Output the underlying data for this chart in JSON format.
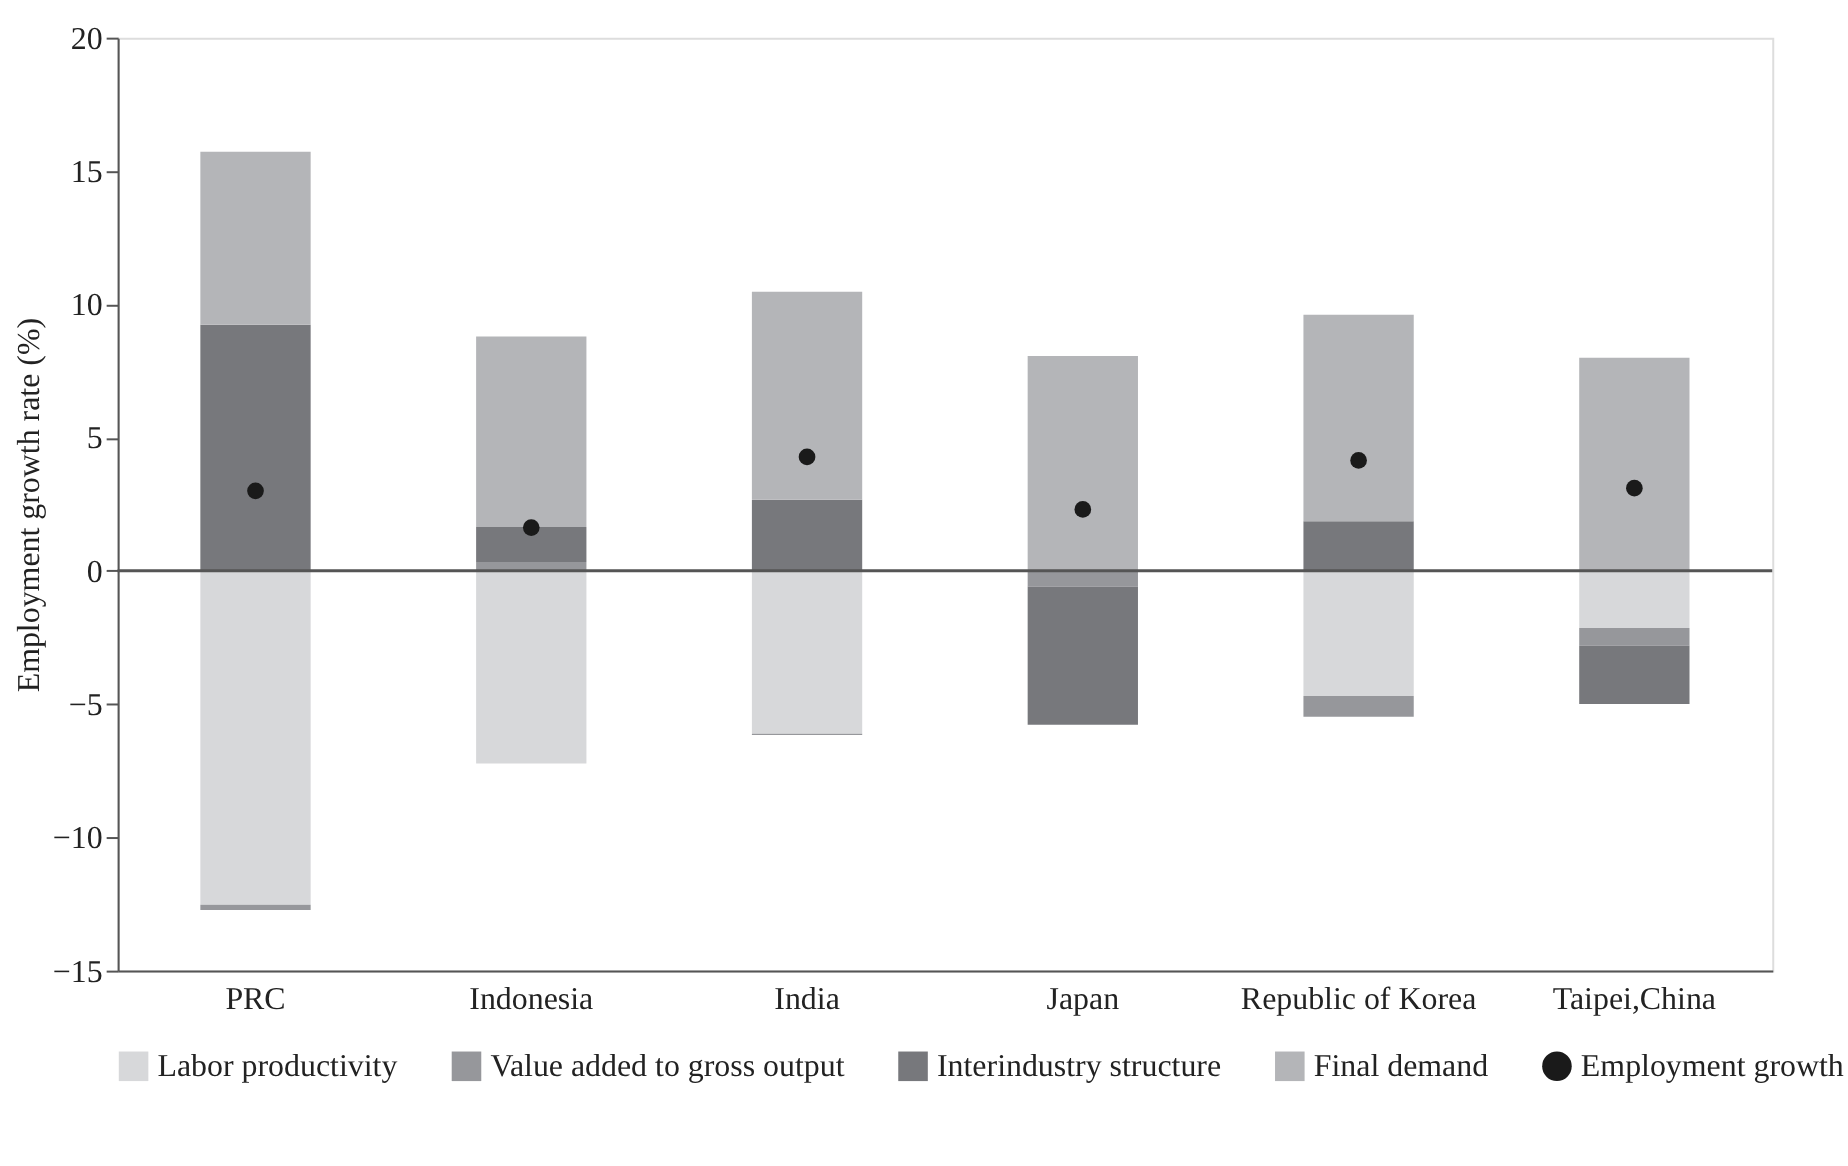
{
  "chart_data": {
    "type": "bar",
    "stacked": true,
    "ylabel": "Employment growth rate (%)",
    "categories": [
      "PRC",
      "Indonesia",
      "India",
      "Japan",
      "Republic of Korea",
      "Taipei,China"
    ],
    "series": [
      {
        "name": "Labor productivity",
        "color": "#d7d8da",
        "values": [
          -12.53,
          -7.23,
          -6.11,
          0,
          -4.7,
          -2.15
        ]
      },
      {
        "name": "Value added to gross output",
        "color": "#96979b",
        "values": [
          -0.2,
          0.33,
          -0.05,
          -0.6,
          -0.78,
          -0.66
        ]
      },
      {
        "name": "Interindustry structure",
        "color": "#77787c",
        "values": [
          9.23,
          1.31,
          2.66,
          -5.18,
          1.86,
          -2.19
        ]
      },
      {
        "name": "Final demand",
        "color": "#b4b5b8",
        "values": [
          6.49,
          7.15,
          7.81,
          8.06,
          7.74,
          7.99
        ]
      },
      {
        "name": "Employment growth",
        "type": "scatter",
        "marker": "circle",
        "color": "#1a1a1a",
        "x": [
          "PRC",
          "Indonesia",
          "India",
          "Japan",
          "Republic of Korea",
          "Taipei,China"
        ],
        "values": [
          3.0,
          1.62,
          4.27,
          2.3,
          4.14,
          3.1
        ]
      }
    ],
    "ylim": [
      -15,
      20
    ],
    "yticks": [
      {
        "value": -15,
        "label": "−15"
      },
      {
        "value": -10,
        "label": "−10"
      },
      {
        "value": -5,
        "label": "−5"
      },
      0,
      5,
      10,
      15,
      20
    ],
    "ref_lines": [
      {
        "axis": "y",
        "value": 0,
        "color": "#555555"
      }
    ],
    "grid": false,
    "legend": "bottom"
  }
}
